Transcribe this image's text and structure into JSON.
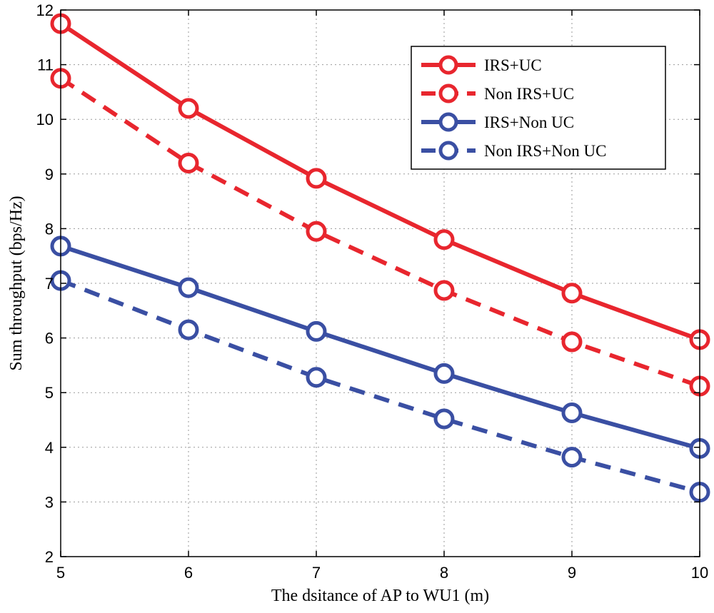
{
  "chart_data": {
    "type": "line",
    "title": "",
    "xlabel": "The dsitance of AP to WU1 (m)",
    "ylabel": "Sum throughput (bps/Hz)",
    "xlim": [
      5,
      10
    ],
    "ylim": [
      2,
      12
    ],
    "xticks": [
      5,
      6,
      7,
      8,
      9,
      10
    ],
    "yticks": [
      2,
      3,
      4,
      5,
      6,
      7,
      8,
      9,
      10,
      11,
      12
    ],
    "grid": true,
    "legend_position": "top-right",
    "x": [
      5,
      6,
      7,
      8,
      9,
      10
    ],
    "series": [
      {
        "name": "IRS+UC",
        "values": [
          11.75,
          10.2,
          8.92,
          7.8,
          6.82,
          5.97
        ],
        "color": "#e8262e",
        "style": "solid",
        "marker": "circle"
      },
      {
        "name": "Non IRS+UC",
        "values": [
          10.75,
          9.2,
          7.95,
          6.87,
          5.93,
          5.12
        ],
        "color": "#e8262e",
        "style": "dashed",
        "marker": "circle"
      },
      {
        "name": "IRS+Non UC",
        "values": [
          7.68,
          6.92,
          6.12,
          5.35,
          4.63,
          3.98
        ],
        "color": "#3a4fa3",
        "style": "solid",
        "marker": "circle"
      },
      {
        "name": "Non IRS+Non UC",
        "values": [
          7.05,
          6.15,
          5.28,
          4.52,
          3.82,
          3.18
        ],
        "color": "#3a4fa3",
        "style": "dashed",
        "marker": "circle"
      }
    ]
  }
}
